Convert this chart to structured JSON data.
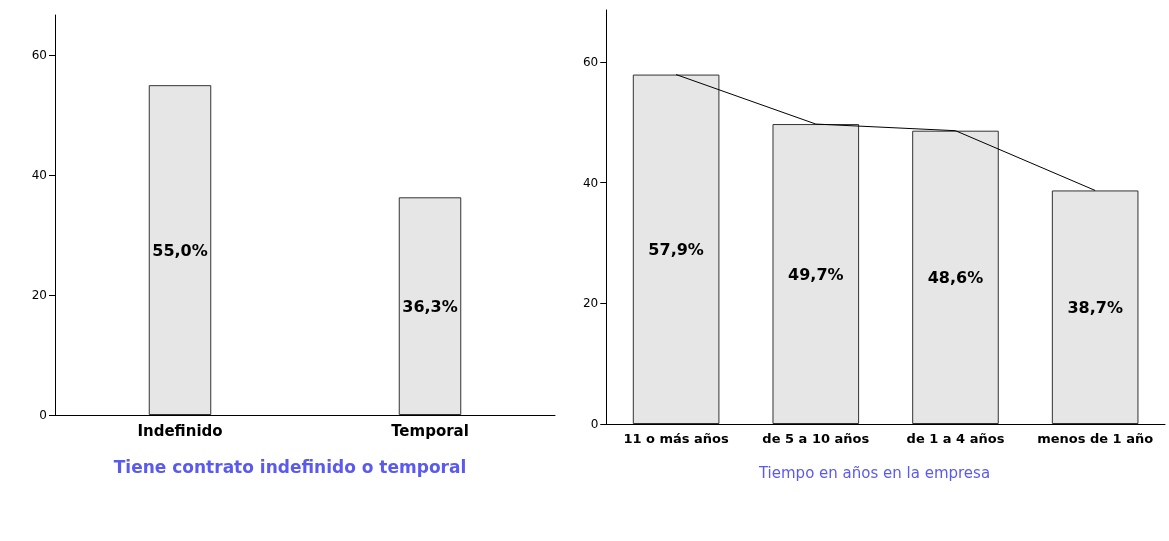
{
  "chart_data": [
    {
      "type": "bar",
      "xlabel": "Tiene contrato indefinido o temporal",
      "categories": [
        "Indefinido",
        "Temporal"
      ],
      "series": [
        {
          "color": "#e6e6e6",
          "values": [
            55.0,
            36.3
          ],
          "value_labels": [
            "55,0%",
            "36,3%"
          ]
        }
      ],
      "ylim": [
        0,
        66.7
      ],
      "yticks": [
        0,
        20,
        40,
        60
      ],
      "grid": false
    },
    {
      "type": "bar",
      "xlabel": "Tiempo en años en la empresa",
      "categories": [
        "11 o más años",
        "de 5 a 10 años",
        "de 1 a 4 años",
        "menos de 1 año"
      ],
      "series": [
        {
          "color": "#e6e6e6",
          "values": [
            57.9,
            49.7,
            48.6,
            38.7
          ],
          "value_labels": [
            "57,9%",
            "49,7%",
            "48,6%",
            "38,7%"
          ]
        },
        {
          "type": "line",
          "color": "#000000",
          "values": [
            57.9,
            49.7,
            48.6,
            38.7
          ],
          "marker": "none"
        }
      ],
      "ylim": [
        0,
        68.6
      ],
      "yticks": [
        0,
        20,
        40,
        60
      ],
      "grid": false
    }
  ]
}
